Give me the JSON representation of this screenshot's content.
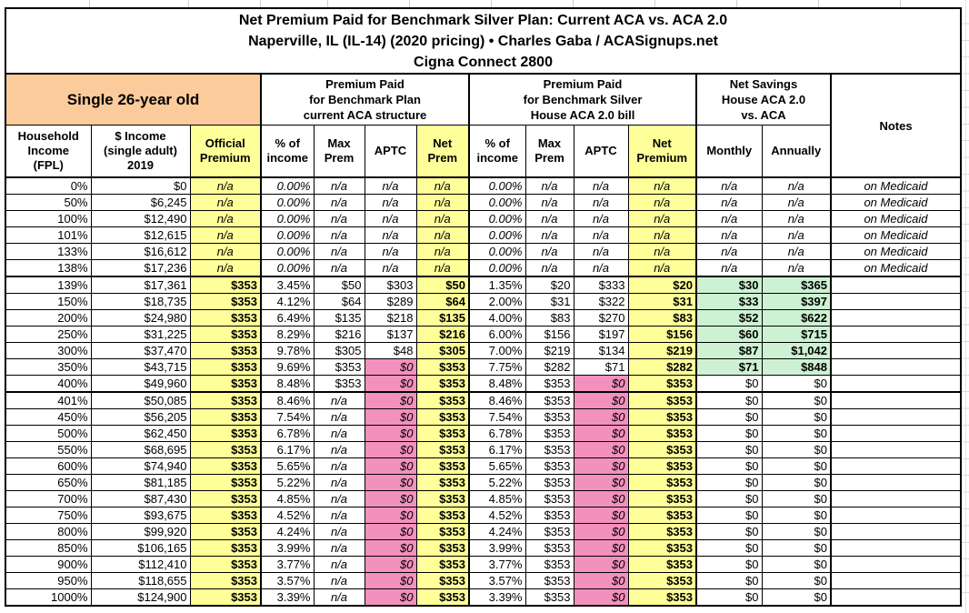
{
  "colors": {
    "yellow": "#FFFF99",
    "orange": "#FBCB9B",
    "pink": "#F291BD",
    "green": "#CDF2D3",
    "border": "#000000"
  },
  "chart_data": {
    "type": "table",
    "title": "Net Premium Paid for Benchmark Silver Plan: Current ACA vs. ACA 2.0",
    "subtitle": "Naperville, IL (IL-14) (2020 pricing) • Charles Gaba / ACASignups.net",
    "plan": "Cigna Connect 2800",
    "subject": "Single 26-year old",
    "groups": {
      "aca": "Premium Paid\nfor Benchmark Plan\ncurrent ACA structure",
      "aca2": "Premium Paid\nfor Benchmark Silver\nHouse ACA 2.0 bill",
      "savings": "Net Savings\nHouse ACA 2.0\nvs. ACA",
      "notes": "Notes"
    },
    "columns": [
      "Household\nIncome\n(FPL)",
      "$ Income\n(single adult)\n2019",
      "Official\nPremium",
      "% of\nincome",
      "Max\nPrem",
      "APTC",
      "Net\nPrem",
      "% of\nincome",
      "Max\nPrem",
      "APTC",
      "Net\nPremium",
      "Monthly",
      "Annually"
    ],
    "rows": [
      {
        "fpl": "0%",
        "income": "$0",
        "official": "n/a",
        "aca": [
          "0.00%",
          "n/a",
          "n/a",
          "n/a"
        ],
        "aca2": [
          "0.00%",
          "n/a",
          "n/a",
          "n/a"
        ],
        "savings": [
          "n/a",
          "n/a"
        ],
        "note": "on Medicaid",
        "medicaid": true
      },
      {
        "fpl": "50%",
        "income": "$6,245",
        "official": "n/a",
        "aca": [
          "0.00%",
          "n/a",
          "n/a",
          "n/a"
        ],
        "aca2": [
          "0.00%",
          "n/a",
          "n/a",
          "n/a"
        ],
        "savings": [
          "n/a",
          "n/a"
        ],
        "note": "on Medicaid",
        "medicaid": true
      },
      {
        "fpl": "100%",
        "income": "$12,490",
        "official": "n/a",
        "aca": [
          "0.00%",
          "n/a",
          "n/a",
          "n/a"
        ],
        "aca2": [
          "0.00%",
          "n/a",
          "n/a",
          "n/a"
        ],
        "savings": [
          "n/a",
          "n/a"
        ],
        "note": "on Medicaid",
        "medicaid": true
      },
      {
        "fpl": "101%",
        "income": "$12,615",
        "official": "n/a",
        "aca": [
          "0.00%",
          "n/a",
          "n/a",
          "n/a"
        ],
        "aca2": [
          "0.00%",
          "n/a",
          "n/a",
          "n/a"
        ],
        "savings": [
          "n/a",
          "n/a"
        ],
        "note": "on Medicaid",
        "medicaid": true
      },
      {
        "fpl": "133%",
        "income": "$16,612",
        "official": "n/a",
        "aca": [
          "0.00%",
          "n/a",
          "n/a",
          "n/a"
        ],
        "aca2": [
          "0.00%",
          "n/a",
          "n/a",
          "n/a"
        ],
        "savings": [
          "n/a",
          "n/a"
        ],
        "note": "on Medicaid",
        "medicaid": true
      },
      {
        "fpl": "138%",
        "income": "$17,236",
        "official": "n/a",
        "aca": [
          "0.00%",
          "n/a",
          "n/a",
          "n/a"
        ],
        "aca2": [
          "0.00%",
          "n/a",
          "n/a",
          "n/a"
        ],
        "savings": [
          "n/a",
          "n/a"
        ],
        "note": "on Medicaid",
        "medicaid": true,
        "thick_bottom": true
      },
      {
        "fpl": "139%",
        "income": "$17,361",
        "official": "$353",
        "aca": [
          "3.45%",
          "$50",
          "$303",
          "$50"
        ],
        "aca2": [
          "1.35%",
          "$20",
          "$333",
          "$20"
        ],
        "savings": [
          "$30",
          "$365"
        ],
        "note": "",
        "green": true
      },
      {
        "fpl": "150%",
        "income": "$18,735",
        "official": "$353",
        "aca": [
          "4.12%",
          "$64",
          "$289",
          "$64"
        ],
        "aca2": [
          "2.00%",
          "$31",
          "$322",
          "$31"
        ],
        "savings": [
          "$33",
          "$397"
        ],
        "note": "",
        "green": true
      },
      {
        "fpl": "200%",
        "income": "$24,980",
        "official": "$353",
        "aca": [
          "6.49%",
          "$135",
          "$218",
          "$135"
        ],
        "aca2": [
          "4.00%",
          "$83",
          "$270",
          "$83"
        ],
        "savings": [
          "$52",
          "$622"
        ],
        "note": "",
        "green": true
      },
      {
        "fpl": "250%",
        "income": "$31,225",
        "official": "$353",
        "aca": [
          "8.29%",
          "$216",
          "$137",
          "$216"
        ],
        "aca2": [
          "6.00%",
          "$156",
          "$197",
          "$156"
        ],
        "savings": [
          "$60",
          "$715"
        ],
        "note": "",
        "green": true
      },
      {
        "fpl": "300%",
        "income": "$37,470",
        "official": "$353",
        "aca": [
          "9.78%",
          "$305",
          "$48",
          "$305"
        ],
        "aca2": [
          "7.00%",
          "$219",
          "$134",
          "$219"
        ],
        "savings": [
          "$87",
          "$1,042"
        ],
        "note": "",
        "green": true
      },
      {
        "fpl": "350%",
        "income": "$43,715",
        "official": "$353",
        "aca": [
          "9.69%",
          "$353",
          "$0",
          "$353"
        ],
        "aca2": [
          "7.75%",
          "$282",
          "$71",
          "$282"
        ],
        "savings": [
          "$71",
          "$848"
        ],
        "note": "",
        "green": true
      },
      {
        "fpl": "400%",
        "income": "$49,960",
        "official": "$353",
        "aca": [
          "8.48%",
          "$353",
          "$0",
          "$353"
        ],
        "aca2": [
          "8.48%",
          "$353",
          "$0",
          "$353"
        ],
        "savings": [
          "$0",
          "$0"
        ],
        "note": "",
        "thick_bottom": true
      },
      {
        "fpl": "401%",
        "income": "$50,085",
        "official": "$353",
        "aca": [
          "8.46%",
          "n/a",
          "$0",
          "$353"
        ],
        "aca2": [
          "8.46%",
          "$353",
          "$0",
          "$353"
        ],
        "savings": [
          "$0",
          "$0"
        ],
        "note": ""
      },
      {
        "fpl": "450%",
        "income": "$56,205",
        "official": "$353",
        "aca": [
          "7.54%",
          "n/a",
          "$0",
          "$353"
        ],
        "aca2": [
          "7.54%",
          "$353",
          "$0",
          "$353"
        ],
        "savings": [
          "$0",
          "$0"
        ],
        "note": ""
      },
      {
        "fpl": "500%",
        "income": "$62,450",
        "official": "$353",
        "aca": [
          "6.78%",
          "n/a",
          "$0",
          "$353"
        ],
        "aca2": [
          "6.78%",
          "$353",
          "$0",
          "$353"
        ],
        "savings": [
          "$0",
          "$0"
        ],
        "note": ""
      },
      {
        "fpl": "550%",
        "income": "$68,695",
        "official": "$353",
        "aca": [
          "6.17%",
          "n/a",
          "$0",
          "$353"
        ],
        "aca2": [
          "6.17%",
          "$353",
          "$0",
          "$353"
        ],
        "savings": [
          "$0",
          "$0"
        ],
        "note": ""
      },
      {
        "fpl": "600%",
        "income": "$74,940",
        "official": "$353",
        "aca": [
          "5.65%",
          "n/a",
          "$0",
          "$353"
        ],
        "aca2": [
          "5.65%",
          "$353",
          "$0",
          "$353"
        ],
        "savings": [
          "$0",
          "$0"
        ],
        "note": ""
      },
      {
        "fpl": "650%",
        "income": "$81,185",
        "official": "$353",
        "aca": [
          "5.22%",
          "n/a",
          "$0",
          "$353"
        ],
        "aca2": [
          "5.22%",
          "$353",
          "$0",
          "$353"
        ],
        "savings": [
          "$0",
          "$0"
        ],
        "note": ""
      },
      {
        "fpl": "700%",
        "income": "$87,430",
        "official": "$353",
        "aca": [
          "4.85%",
          "n/a",
          "$0",
          "$353"
        ],
        "aca2": [
          "4.85%",
          "$353",
          "$0",
          "$353"
        ],
        "savings": [
          "$0",
          "$0"
        ],
        "note": ""
      },
      {
        "fpl": "750%",
        "income": "$93,675",
        "official": "$353",
        "aca": [
          "4.52%",
          "n/a",
          "$0",
          "$353"
        ],
        "aca2": [
          "4.52%",
          "$353",
          "$0",
          "$353"
        ],
        "savings": [
          "$0",
          "$0"
        ],
        "note": ""
      },
      {
        "fpl": "800%",
        "income": "$99,920",
        "official": "$353",
        "aca": [
          "4.24%",
          "n/a",
          "$0",
          "$353"
        ],
        "aca2": [
          "4.24%",
          "$353",
          "$0",
          "$353"
        ],
        "savings": [
          "$0",
          "$0"
        ],
        "note": ""
      },
      {
        "fpl": "850%",
        "income": "$106,165",
        "official": "$353",
        "aca": [
          "3.99%",
          "n/a",
          "$0",
          "$353"
        ],
        "aca2": [
          "3.99%",
          "$353",
          "$0",
          "$353"
        ],
        "savings": [
          "$0",
          "$0"
        ],
        "note": ""
      },
      {
        "fpl": "900%",
        "income": "$112,410",
        "official": "$353",
        "aca": [
          "3.77%",
          "n/a",
          "$0",
          "$353"
        ],
        "aca2": [
          "3.77%",
          "$353",
          "$0",
          "$353"
        ],
        "savings": [
          "$0",
          "$0"
        ],
        "note": ""
      },
      {
        "fpl": "950%",
        "income": "$118,655",
        "official": "$353",
        "aca": [
          "3.57%",
          "n/a",
          "$0",
          "$353"
        ],
        "aca2": [
          "3.57%",
          "$353",
          "$0",
          "$353"
        ],
        "savings": [
          "$0",
          "$0"
        ],
        "note": ""
      },
      {
        "fpl": "1000%",
        "income": "$124,900",
        "official": "$353",
        "aca": [
          "3.39%",
          "n/a",
          "$0",
          "$353"
        ],
        "aca2": [
          "3.39%",
          "$353",
          "$0",
          "$353"
        ],
        "savings": [
          "$0",
          "$0"
        ],
        "note": ""
      }
    ]
  }
}
